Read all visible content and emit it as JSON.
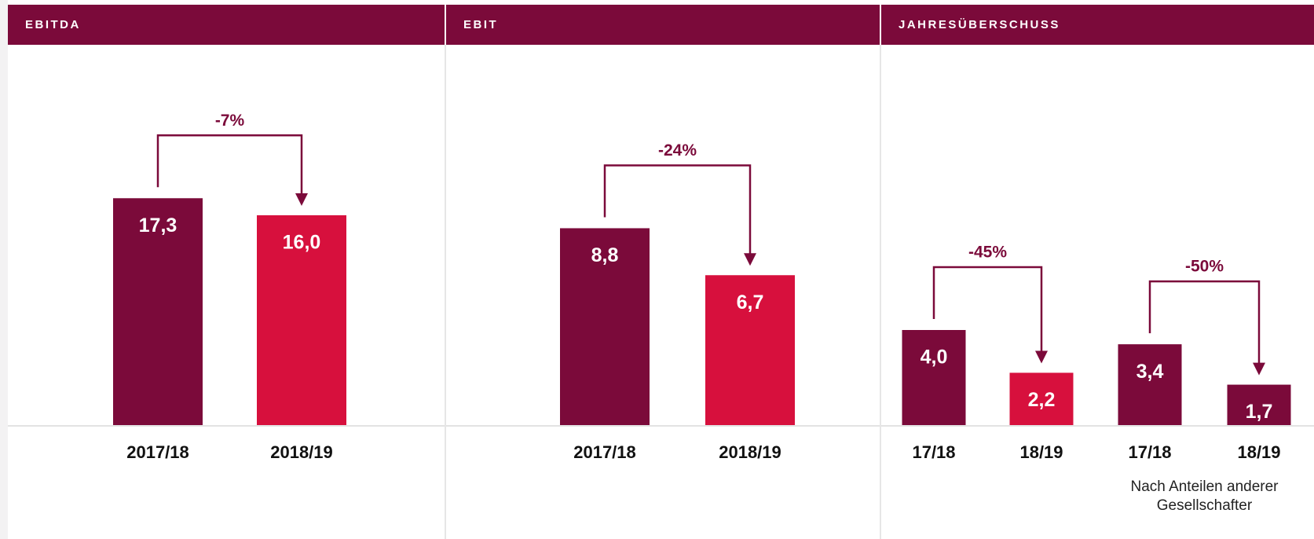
{
  "chart_data": [
    {
      "type": "bar",
      "title": "EBITDA",
      "categories": [
        "2017/18",
        "2018/19"
      ],
      "values": [
        17.3,
        16.0
      ],
      "value_labels": [
        "17,3",
        "16,0"
      ],
      "colors": [
        "#7b0a3a",
        "#d7103d"
      ],
      "changes": [
        "-7%"
      ],
      "ylim": [
        0,
        29
      ]
    },
    {
      "type": "bar",
      "title": "EBIT",
      "categories": [
        "2017/18",
        "2018/19"
      ],
      "values": [
        8.8,
        6.7
      ],
      "value_labels": [
        "8,8",
        "6,7"
      ],
      "colors": [
        "#7b0a3a",
        "#d7103d"
      ],
      "changes": [
        "-24%"
      ],
      "ylim": [
        0,
        17
      ]
    },
    {
      "type": "bar",
      "title": "JAHRESÜBERSCHUSS",
      "categories": [
        "17/18",
        "18/19",
        "17/18",
        "18/19"
      ],
      "values": [
        4.0,
        2.2,
        3.4,
        1.7
      ],
      "value_labels": [
        "4,0",
        "2,2",
        "3,4",
        "1,7"
      ],
      "colors": [
        "#7b0a3a",
        "#d7103d",
        "#7b0a3a",
        "#7b0a3a"
      ],
      "changes": [
        "-45%",
        "-50%"
      ],
      "note": "Nach Anteilen anderer Gesellschafter",
      "ylim": [
        0,
        16
      ]
    }
  ]
}
